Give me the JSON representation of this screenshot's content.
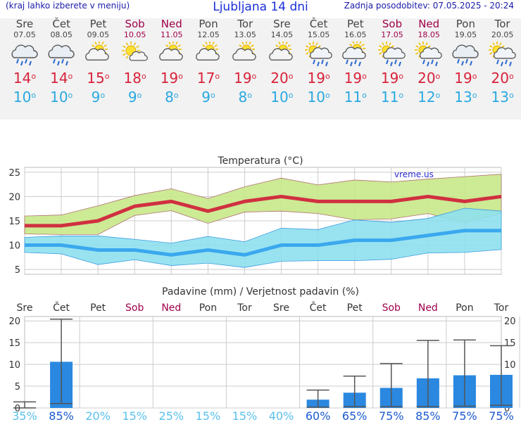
{
  "header": {
    "menu_note": "(kraj lahko izberete v meniju)",
    "title": "Ljubljana 14 dni",
    "updated": "Zadnja posodobitev: 07.05.2025 - 20:24"
  },
  "days": [
    {
      "name": "Sre",
      "date": "07.05",
      "weekend": false,
      "icon": "rain-cloud-icon",
      "max": "14",
      "min": "10"
    },
    {
      "name": "Čet",
      "date": "08.05",
      "weekend": false,
      "icon": "rain-cloud-icon",
      "max": "14",
      "min": "10"
    },
    {
      "name": "Pet",
      "date": "09.05",
      "weekend": false,
      "icon": "partly-cloudy-icon",
      "max": "15",
      "min": "9"
    },
    {
      "name": "Sob",
      "date": "10.05",
      "weekend": true,
      "icon": "sun-cloud-icon",
      "max": "18",
      "min": "9"
    },
    {
      "name": "Ned",
      "date": "11.05",
      "weekend": true,
      "icon": "partly-cloudy-icon",
      "max": "19",
      "min": "8"
    },
    {
      "name": "Pon",
      "date": "12.05",
      "weekend": false,
      "icon": "partly-cloudy-icon",
      "max": "17",
      "min": "9"
    },
    {
      "name": "Tor",
      "date": "13.05",
      "weekend": false,
      "icon": "partly-cloudy-icon",
      "max": "19",
      "min": "8"
    },
    {
      "name": "Sre",
      "date": "14.05",
      "weekend": false,
      "icon": "partly-cloudy-icon",
      "max": "20",
      "min": "10"
    },
    {
      "name": "Čet",
      "date": "15.05",
      "weekend": false,
      "icon": "sun-rain-icon",
      "max": "19",
      "min": "10"
    },
    {
      "name": "Pet",
      "date": "16.05",
      "weekend": false,
      "icon": "partly-cloudy-rain-icon",
      "max": "19",
      "min": "11"
    },
    {
      "name": "Sob",
      "date": "17.05",
      "weekend": true,
      "icon": "sun-rain-icon",
      "max": "19",
      "min": "11"
    },
    {
      "name": "Ned",
      "date": "18.05",
      "weekend": true,
      "icon": "sun-rain-icon",
      "max": "20",
      "min": "12"
    },
    {
      "name": "Pon",
      "date": "19.05",
      "weekend": false,
      "icon": "rain-cloud-icon",
      "max": "19",
      "min": "13"
    },
    {
      "name": "Tor",
      "date": "20.05",
      "weekend": false,
      "icon": "sun-rain-icon",
      "max": "20",
      "min": "13"
    }
  ],
  "colors": {
    "max_temp": "#d8223a",
    "min_temp": "#2aa8e0",
    "max_band": "#c8e88a",
    "min_band": "#8ee0ee",
    "max_line": "#d03040",
    "min_line": "#3aa8ee",
    "rain_bar": "#2a88e0",
    "weekend": "#a0004a"
  },
  "chart_data": [
    {
      "type": "line",
      "title": "Temperatura (°C)",
      "watermark": "vreme.us",
      "categories": [
        "07.05",
        "08.05",
        "09.05",
        "10.05",
        "11.05",
        "12.05",
        "13.05",
        "14.05",
        "15.05",
        "16.05",
        "17.05",
        "18.05",
        "19.05",
        "20.05"
      ],
      "ylim": [
        4,
        26
      ],
      "yticks": [
        5,
        10,
        15,
        20,
        25
      ],
      "grid": true,
      "series": [
        {
          "name": "max",
          "values": [
            14,
            14,
            15,
            18,
            19,
            17,
            19,
            20,
            19,
            19,
            19,
            20,
            19,
            20
          ]
        },
        {
          "name": "max_upper",
          "values": [
            16,
            16.2,
            18.1,
            20.2,
            21.6,
            19.6,
            22,
            23.8,
            22.4,
            23.4,
            23,
            23.6,
            24.1,
            24.6
          ]
        },
        {
          "name": "max_lower",
          "values": [
            12.3,
            12.2,
            12.2,
            16.1,
            17.1,
            14.5,
            16.8,
            17,
            16.5,
            15.2,
            15.4,
            16.5,
            14.6,
            16.5
          ]
        },
        {
          "name": "min",
          "values": [
            10,
            10,
            9,
            9,
            8,
            9,
            8,
            10,
            10,
            11,
            11,
            12,
            13,
            13
          ]
        },
        {
          "name": "min_upper",
          "values": [
            11.6,
            11.9,
            11.9,
            11.2,
            10.4,
            11.8,
            10.7,
            13.5,
            13.2,
            15.2,
            14.7,
            15.5,
            17.6,
            17
          ]
        },
        {
          "name": "min_lower",
          "values": [
            8.5,
            8.2,
            6,
            7,
            5.8,
            6.3,
            5.4,
            6.7,
            6.8,
            6.8,
            7.1,
            8.4,
            8.5,
            9.1
          ]
        }
      ]
    },
    {
      "type": "bar",
      "title": "Padavine (mm) / Verjetnost padavin (%)",
      "categories": [
        "Sre",
        "Čet",
        "Pet",
        "Sob",
        "Ned",
        "Pon",
        "Tor",
        "Sre",
        "Čet",
        "Pet",
        "Sob",
        "Ned",
        "Pon",
        "Tor"
      ],
      "ylim": [
        0,
        21
      ],
      "yticks": [
        0,
        5,
        10,
        15,
        20
      ],
      "grid": true,
      "series": [
        {
          "name": "precipitation",
          "values": [
            0.1,
            10.6,
            0,
            0,
            0,
            0,
            0,
            0,
            1.9,
            3.5,
            4.6,
            6.8,
            7.5,
            7.6
          ]
        }
      ],
      "error_low": [
        0,
        1,
        0,
        0,
        0,
        0,
        0,
        0,
        0.2,
        0.3,
        0.3,
        0.3,
        0.4,
        0.6
      ],
      "error_high": [
        1.4,
        20.4,
        0,
        0,
        0,
        0,
        0,
        0,
        4.1,
        7.3,
        10.2,
        15.5,
        15.6,
        14.3
      ],
      "probability": [
        "35%",
        "85%",
        "20%",
        "15%",
        "25%",
        "15%",
        "15%",
        "40%",
        "60%",
        "65%",
        "75%",
        "85%",
        "75%",
        "75%"
      ]
    }
  ]
}
